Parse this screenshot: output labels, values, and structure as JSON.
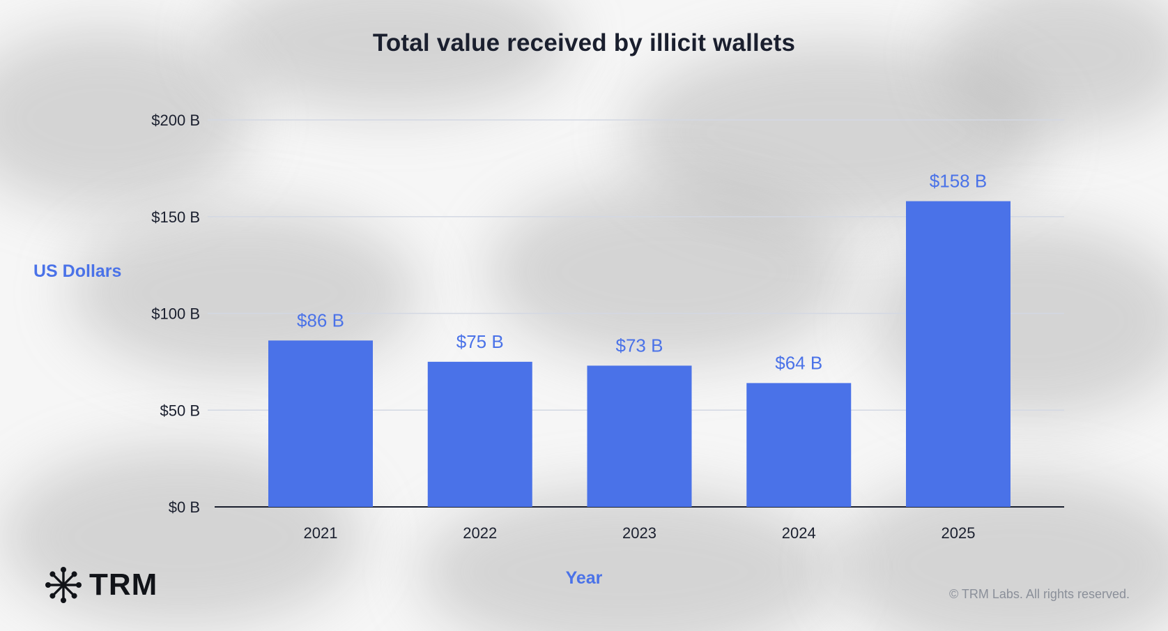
{
  "chart_data": {
    "type": "bar",
    "title": "Total value received by illicit wallets",
    "xlabel": "Year",
    "ylabel": "US Dollars",
    "categories": [
      "2021",
      "2022",
      "2023",
      "2024",
      "2025"
    ],
    "values": [
      86,
      75,
      73,
      64,
      158
    ],
    "value_labels": [
      "$86 B",
      "$75 B",
      "$73 B",
      "$64 B",
      "$158 B"
    ],
    "ylim": [
      0,
      200
    ],
    "yticks": [
      0,
      50,
      100,
      150,
      200
    ],
    "ytick_labels": [
      "$0 B",
      "$50 B",
      "$100 B",
      "$150 B",
      "$200 B"
    ],
    "bar_color": "#4a72e8",
    "label_color": "#4a72e8",
    "grid": true
  },
  "brand": {
    "name": "TRM",
    "copyright": "© TRM Labs. All rights reserved."
  }
}
